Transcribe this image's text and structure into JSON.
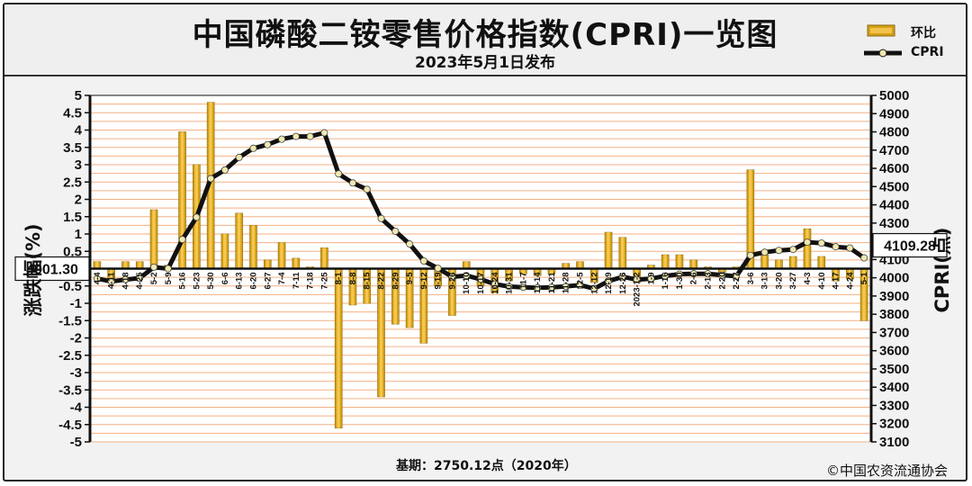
{
  "header": {
    "title": "中国磷酸二铵零售价格指数(CPRI)一览图",
    "date": "2023年5月1日发布"
  },
  "legend": {
    "bar_label": "环比",
    "line_label": "CPRI"
  },
  "callouts": {
    "left_value": "4001.30",
    "right_value": "4109.28"
  },
  "footer": {
    "base": "基期：2750.12点（2020年）",
    "copyright": "©中国农资流通协会"
  },
  "colors": {
    "grid": "#f4b183",
    "bar": "#d4a017",
    "line": "#111111",
    "marker": "#f0e8b0",
    "plot_bg": "#ffffff"
  },
  "chart_data": {
    "type": "bar+line",
    "ylabel_left": "涨跌幅(%)",
    "ylabel_right": "CPRI(点)",
    "ylim_left": [
      -5,
      5
    ],
    "ylim_right": [
      3100,
      5000
    ],
    "yticks_left": [
      "5",
      "4.5",
      "4",
      "3.5",
      "3",
      "2.5",
      "2",
      "1.5",
      "1",
      "0.5",
      "0",
      "-0.5",
      "-1",
      "-1.5",
      "-2",
      "-2.5",
      "-3",
      "-3.5",
      "-4",
      "-4.5",
      "-5"
    ],
    "yticks_right": [
      "5000",
      "4900",
      "4800",
      "4700",
      "4600",
      "4500",
      "4400",
      "4300",
      "4200",
      "4100",
      "4000",
      "3900",
      "3800",
      "3700",
      "3600",
      "3500",
      "3400",
      "3300",
      "3200",
      "3100"
    ],
    "grid": true,
    "categories": [
      "4-4",
      "4-11",
      "4-18",
      "4-25",
      "5-2",
      "5-9",
      "5-16",
      "5-23",
      "5-30",
      "6-6",
      "6-13",
      "6-20",
      "6-27",
      "7-4",
      "7-11",
      "7-18",
      "7-25",
      "8-1",
      "8-8",
      "8-15",
      "8-22",
      "8-29",
      "9-5",
      "9-12",
      "9-19",
      "9-26",
      "10-10",
      "10-17",
      "10-24",
      "10-31",
      "11-7",
      "11-14",
      "11-21",
      "11-28",
      "12-5",
      "12-12",
      "12-19",
      "12-26",
      "2023-1-2",
      "1-9",
      "1-16",
      "1-30",
      "2-6",
      "2-13",
      "2-20",
      "2-27",
      "3-6",
      "3-13",
      "3-20",
      "3-27",
      "4-3",
      "4-10",
      "4-17",
      "4-24",
      "5-1"
    ],
    "xticks_visible": [
      "4-4",
      "4-11",
      "4-18",
      "4-25",
      "5-2",
      "5-9",
      "5-16",
      "5-23",
      "5-30",
      "6-6",
      "6-13",
      "6-20",
      "6-27",
      "7-4",
      "7-11",
      "7-18",
      "7-25",
      "8-1",
      "8-8",
      "8-15",
      "8-22",
      "8-29",
      "9-5",
      "9-12",
      "9-19",
      "9-26",
      "10-10",
      "10-17",
      "10-24",
      "10-31",
      "11-7",
      "11-14",
      "11-21",
      "11-28",
      "12-5",
      "12-12",
      "12-19",
      "12-26",
      "2023-1-2",
      "1-9",
      "1-16",
      "1-30",
      "2-6",
      "2-13",
      "2-20",
      "2-27",
      "3-6",
      "3-13",
      "3-20",
      "3-27",
      "4-3",
      "4-10",
      "4-17",
      "4-24",
      "5-1"
    ],
    "series": [
      {
        "name": "环比",
        "kind": "bar",
        "axis": "left",
        "values": [
          0.2,
          -0.4,
          0.2,
          0.2,
          1.7,
          0.1,
          3.95,
          3.0,
          4.8,
          1.0,
          1.6,
          1.25,
          0.25,
          0.75,
          0.3,
          0.05,
          0.6,
          -4.6,
          -1.05,
          -1.0,
          -3.7,
          -1.6,
          -1.7,
          -2.15,
          -0.5,
          -1.35,
          0.2,
          -0.5,
          -0.7,
          -0.35,
          -0.15,
          -0.2,
          -0.15,
          0.15,
          0.2,
          -0.4,
          1.05,
          0.9,
          -0.4,
          0.1,
          0.4,
          0.4,
          0.25,
          0.05,
          -0.1,
          0.05,
          2.85,
          0.4,
          0.25,
          0.35,
          1.15,
          0.35,
          -0.35,
          -0.3,
          -1.5
        ]
      },
      {
        "name": "CPRI",
        "kind": "line",
        "axis": "right",
        "values": [
          3995,
          3980,
          3990,
          3998,
          4058,
          4050,
          4210,
          4332,
          4544,
          4591,
          4660,
          4710,
          4730,
          4760,
          4775,
          4775,
          4795,
          4570,
          4520,
          4485,
          4325,
          4255,
          4185,
          4092,
          4052,
          4005,
          4012,
          3992,
          3965,
          3952,
          3948,
          3945,
          3948,
          3953,
          3960,
          3940,
          3982,
          4005,
          3990,
          3995,
          4010,
          4020,
          4022,
          4022,
          4015,
          4008,
          4123,
          4140,
          4150,
          4155,
          4195,
          4190,
          4170,
          4163,
          4109
        ]
      }
    ]
  }
}
